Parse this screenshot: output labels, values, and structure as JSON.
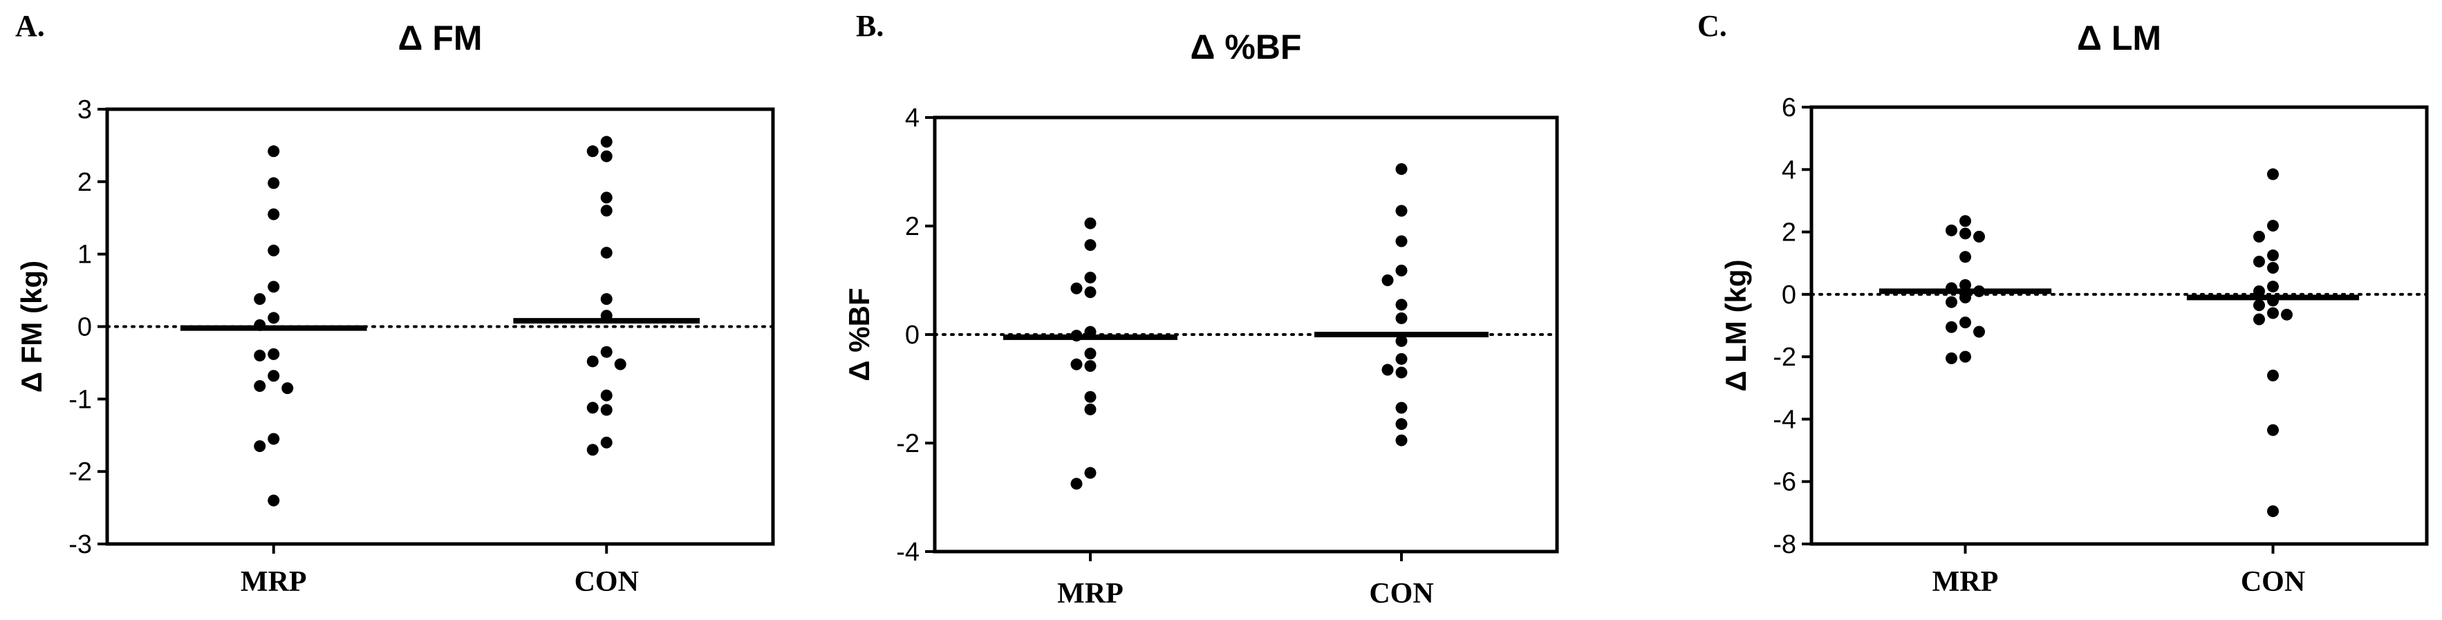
{
  "chart_data": [
    {
      "type": "scatter",
      "panel_letter": "A.",
      "title": "Δ FM",
      "ylabel": "Δ FM (kg)",
      "categories": [
        "MRP",
        "CON"
      ],
      "ylim": [
        -3,
        3
      ],
      "yticks": [
        -3,
        -2,
        -1,
        0,
        1,
        2,
        3
      ],
      "reference_line": 0,
      "groups": [
        {
          "category": "MRP",
          "mean": -0.02,
          "points": [
            2.42,
            1.98,
            1.55,
            1.05,
            0.55,
            0.38,
            0.12,
            0.02,
            -0.38,
            -0.4,
            -0.68,
            -0.82,
            -0.85,
            -1.55,
            -1.65,
            -2.4
          ]
        },
        {
          "category": "CON",
          "mean": 0.08,
          "points": [
            2.55,
            2.42,
            2.35,
            1.78,
            1.6,
            1.02,
            0.38,
            0.15,
            -0.35,
            -0.48,
            -0.52,
            -0.95,
            -1.12,
            -1.15,
            -1.6,
            -1.7
          ]
        }
      ]
    },
    {
      "type": "scatter",
      "panel_letter": "B.",
      "title": "Δ %BF",
      "ylabel": "Δ %BF",
      "categories": [
        "MRP",
        "CON"
      ],
      "ylim": [
        -4,
        4
      ],
      "yticks": [
        -4,
        -2,
        0,
        2,
        4
      ],
      "reference_line": 0,
      "groups": [
        {
          "category": "MRP",
          "mean": -0.05,
          "points": [
            2.05,
            1.65,
            1.05,
            0.85,
            0.78,
            0.05,
            -0.02,
            -0.35,
            -0.55,
            -0.58,
            -1.15,
            -1.38,
            -2.55,
            -2.75
          ]
        },
        {
          "category": "CON",
          "mean": 0.0,
          "points": [
            3.05,
            2.28,
            1.72,
            1.18,
            1.0,
            0.55,
            0.3,
            -0.12,
            -0.45,
            -0.65,
            -0.7,
            -1.35,
            -1.65,
            -1.95
          ]
        }
      ]
    },
    {
      "type": "scatter",
      "panel_letter": "C.",
      "title": "Δ LM",
      "ylabel": "Δ LM (kg)",
      "categories": [
        "MRP",
        "CON"
      ],
      "ylim": [
        -8,
        6
      ],
      "yticks": [
        -8,
        -6,
        -4,
        -2,
        0,
        2,
        4,
        6
      ],
      "reference_line": 0,
      "groups": [
        {
          "category": "MRP",
          "mean": 0.1,
          "points": [
            2.35,
            2.05,
            1.95,
            1.85,
            1.2,
            0.3,
            0.2,
            0.1,
            -0.1,
            -0.25,
            -0.9,
            -1.05,
            -1.2,
            -2.0,
            -2.05
          ]
        },
        {
          "category": "CON",
          "mean": -0.1,
          "points": [
            3.85,
            2.2,
            1.85,
            1.25,
            1.05,
            0.85,
            0.25,
            0.1,
            -0.2,
            -0.35,
            -0.6,
            -0.65,
            -0.8,
            -2.6,
            -4.35,
            -6.95
          ]
        }
      ]
    }
  ]
}
